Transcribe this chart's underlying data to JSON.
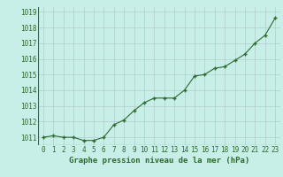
{
  "x": [
    0,
    1,
    2,
    3,
    4,
    5,
    6,
    7,
    8,
    9,
    10,
    11,
    12,
    13,
    14,
    15,
    16,
    17,
    18,
    19,
    20,
    21,
    22,
    23
  ],
  "y": [
    1011.0,
    1011.1,
    1011.0,
    1011.0,
    1010.8,
    1010.8,
    1011.0,
    1011.8,
    1012.1,
    1012.7,
    1013.2,
    1013.5,
    1013.5,
    1013.5,
    1014.0,
    1014.9,
    1015.0,
    1015.4,
    1015.5,
    1015.9,
    1016.3,
    1017.0,
    1017.5,
    1018.6
  ],
  "line_color": "#2d6a2d",
  "marker_color": "#2d6a2d",
  "bg_color": "#c8eee8",
  "grid_color": "#b0cccc",
  "text_color": "#2d6a2d",
  "xlabel": "Graphe pression niveau de la mer (hPa)",
  "xlim": [
    -0.5,
    23.5
  ],
  "ylim": [
    1010.5,
    1019.3
  ],
  "yticks": [
    1011,
    1012,
    1013,
    1014,
    1015,
    1016,
    1017,
    1018,
    1019
  ],
  "xticks": [
    0,
    1,
    2,
    3,
    4,
    5,
    6,
    7,
    8,
    9,
    10,
    11,
    12,
    13,
    14,
    15,
    16,
    17,
    18,
    19,
    20,
    21,
    22,
    23
  ],
  "tick_fontsize": 5.5,
  "xlabel_fontsize": 6.5
}
